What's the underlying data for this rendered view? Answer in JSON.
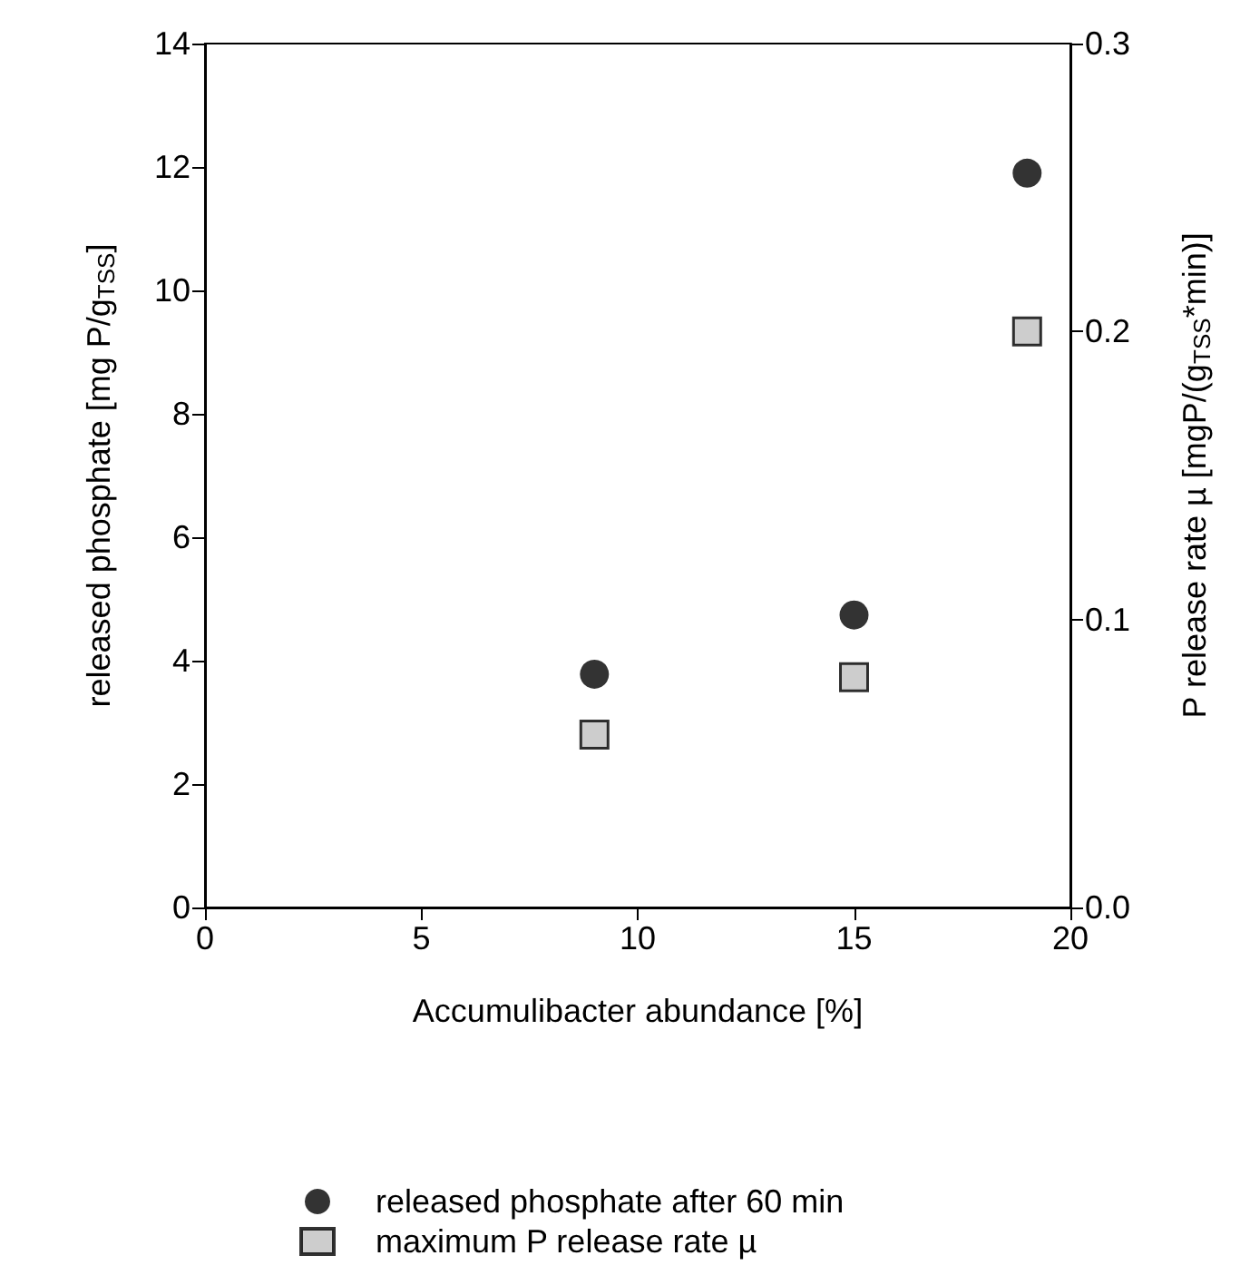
{
  "chart_data": {
    "type": "scatter",
    "xlabel": "Accumulibacter abundance [%]",
    "ylabel": "released phosphate [mg P/g$_{TSS}$]",
    "y2label": "P release rate µ [mgP/(g$_{TSS}$*min)]",
    "x": [
      9,
      15,
      19
    ],
    "series": [
      {
        "name": "released phosphate after 60 min",
        "color": "#000000",
        "marker": "circle",
        "values": [
          3.78,
          4.74,
          11.9
        ]
      },
      {
        "name": "maximum P release rate µ",
        "color": "#c0c0c0",
        "marker": "square",
        "axis": "y2",
        "values": [
          0.06,
          0.08,
          0.2
        ]
      }
    ],
    "xlim": [
      0,
      20
    ],
    "xticks": [
      0,
      5,
      10,
      15,
      20
    ],
    "ylim": [
      0,
      14
    ],
    "yticks": [
      0,
      2,
      4,
      6,
      8,
      10,
      12,
      14
    ],
    "y2lim": [
      0,
      0.3
    ],
    "y2ticks": [
      {
        "value": 0,
        "label": "0.0"
      },
      {
        "value": 0.1,
        "label": "0.1"
      },
      {
        "value": 0.2,
        "label": "0.2"
      },
      {
        "value": 0.3,
        "label": "0.3"
      }
    ],
    "grid": false,
    "legend": "bottom"
  }
}
